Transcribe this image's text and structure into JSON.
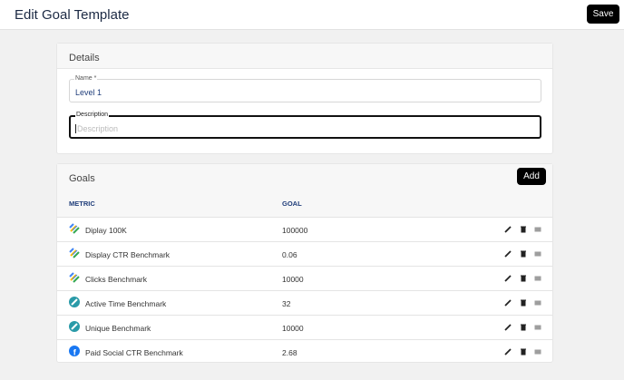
{
  "header": {
    "title": "Edit Goal Template",
    "save_label": "Save"
  },
  "details": {
    "title": "Details",
    "name_label": "Name *",
    "name_value": "Level 1",
    "description_label": "Description",
    "description_placeholder": "Description"
  },
  "goals": {
    "title": "Goals",
    "add_label": "Add",
    "columns": [
      "METRIC",
      "GOAL"
    ],
    "rows": [
      {
        "metric": "Diplay 100K",
        "goal": "100000",
        "icon": "google-ads-icon"
      },
      {
        "metric": "Display CTR Benchmark",
        "goal": "0.06",
        "icon": "google-ads-icon"
      },
      {
        "metric": "Clicks Benchmark",
        "goal": "10000",
        "icon": "google-ads-icon"
      },
      {
        "metric": "Active Time Benchmark",
        "goal": "32",
        "icon": "teal-compass-icon"
      },
      {
        "metric": "Unique Benchmark",
        "goal": "10000",
        "icon": "teal-compass-icon"
      },
      {
        "metric": "Paid Social CTR Benchmark",
        "goal": "2.68",
        "icon": "facebook-icon"
      }
    ]
  }
}
